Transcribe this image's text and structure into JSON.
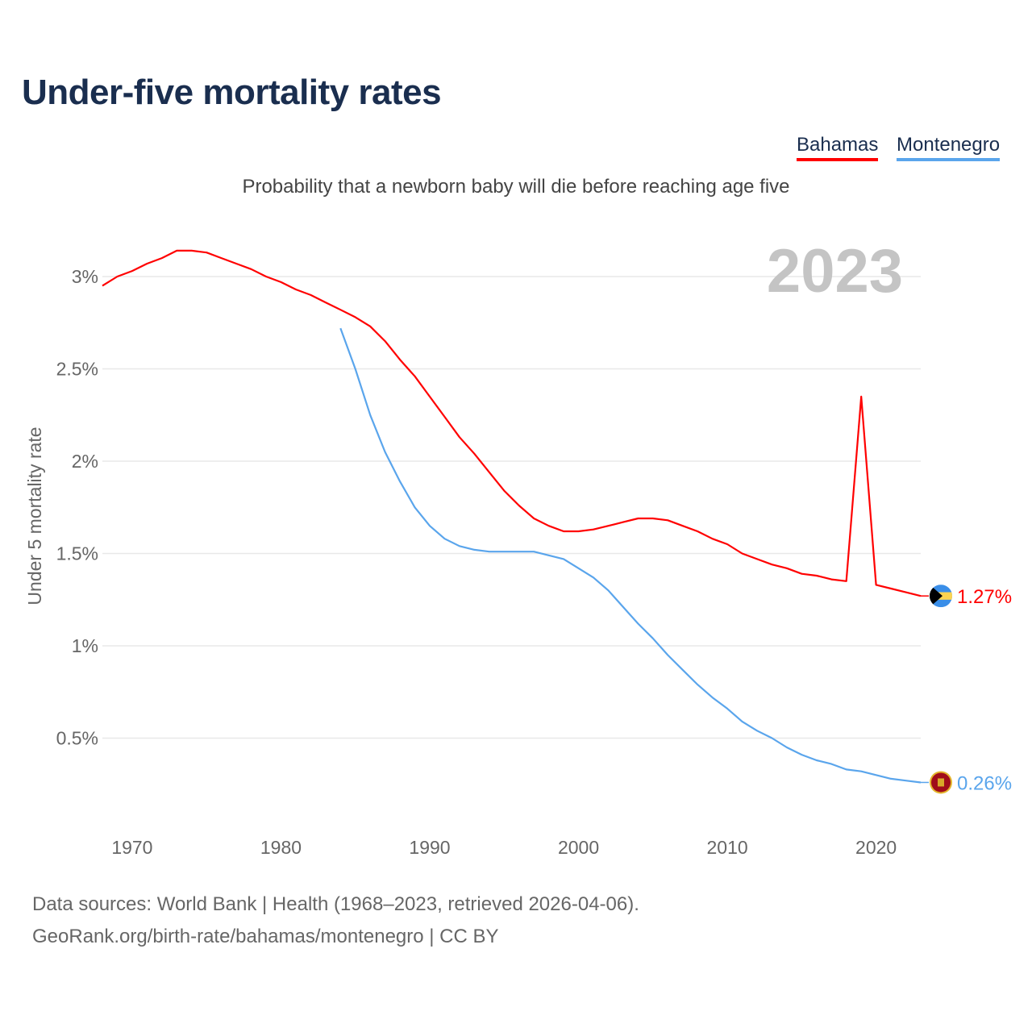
{
  "title": "Under-five mortality rates",
  "source_line1": "Data sources: World Bank | Health (1968–2023, retrieved 2026-04-06).",
  "source_line2": "GeoRank.org/birth-rate/bahamas/montenegro | CC BY",
  "chart_data": {
    "type": "line",
    "title": "Under-five mortality rates",
    "subtitle": "Probability that a newborn baby will die before reaching age five",
    "ylabel": "Under 5 mortality rate",
    "xlabel": "",
    "year_label": "2023",
    "xlim": [
      1968,
      2023
    ],
    "ylim": [
      0,
      3.3
    ],
    "x_ticks": [
      1970,
      1980,
      1990,
      2000,
      2010,
      2020
    ],
    "y_ticks": [
      0.5,
      1,
      1.5,
      2,
      2.5,
      3
    ],
    "y_tick_labels": [
      "0.5%",
      "1%",
      "1.5%",
      "2%",
      "2.5%",
      "3%"
    ],
    "grid": true,
    "legend_position": "top-right",
    "series": [
      {
        "name": "Bahamas",
        "color": "#ff0000",
        "end_label": "1.27%",
        "x_start": 1968,
        "values": [
          2.95,
          3.0,
          3.03,
          3.07,
          3.1,
          3.14,
          3.14,
          3.13,
          3.1,
          3.07,
          3.04,
          3.0,
          2.97,
          2.93,
          2.9,
          2.86,
          2.82,
          2.78,
          2.73,
          2.65,
          2.55,
          2.46,
          2.35,
          2.24,
          2.13,
          2.04,
          1.94,
          1.84,
          1.76,
          1.69,
          1.65,
          1.62,
          1.62,
          1.63,
          1.65,
          1.67,
          1.69,
          1.69,
          1.68,
          1.65,
          1.62,
          1.58,
          1.55,
          1.5,
          1.47,
          1.44,
          1.42,
          1.39,
          1.38,
          1.36,
          1.35,
          2.35,
          1.33,
          1.31,
          1.29,
          1.27
        ]
      },
      {
        "name": "Montenegro",
        "color": "#5aa5ec",
        "end_label": "0.26%",
        "x_start": 1984,
        "values": [
          2.72,
          2.5,
          2.25,
          2.05,
          1.89,
          1.75,
          1.65,
          1.58,
          1.54,
          1.52,
          1.51,
          1.51,
          1.51,
          1.51,
          1.49,
          1.47,
          1.42,
          1.37,
          1.3,
          1.21,
          1.12,
          1.04,
          0.95,
          0.87,
          0.79,
          0.72,
          0.66,
          0.59,
          0.54,
          0.5,
          0.45,
          0.41,
          0.38,
          0.36,
          0.33,
          0.32,
          0.3,
          0.28,
          0.27,
          0.26
        ]
      }
    ]
  }
}
